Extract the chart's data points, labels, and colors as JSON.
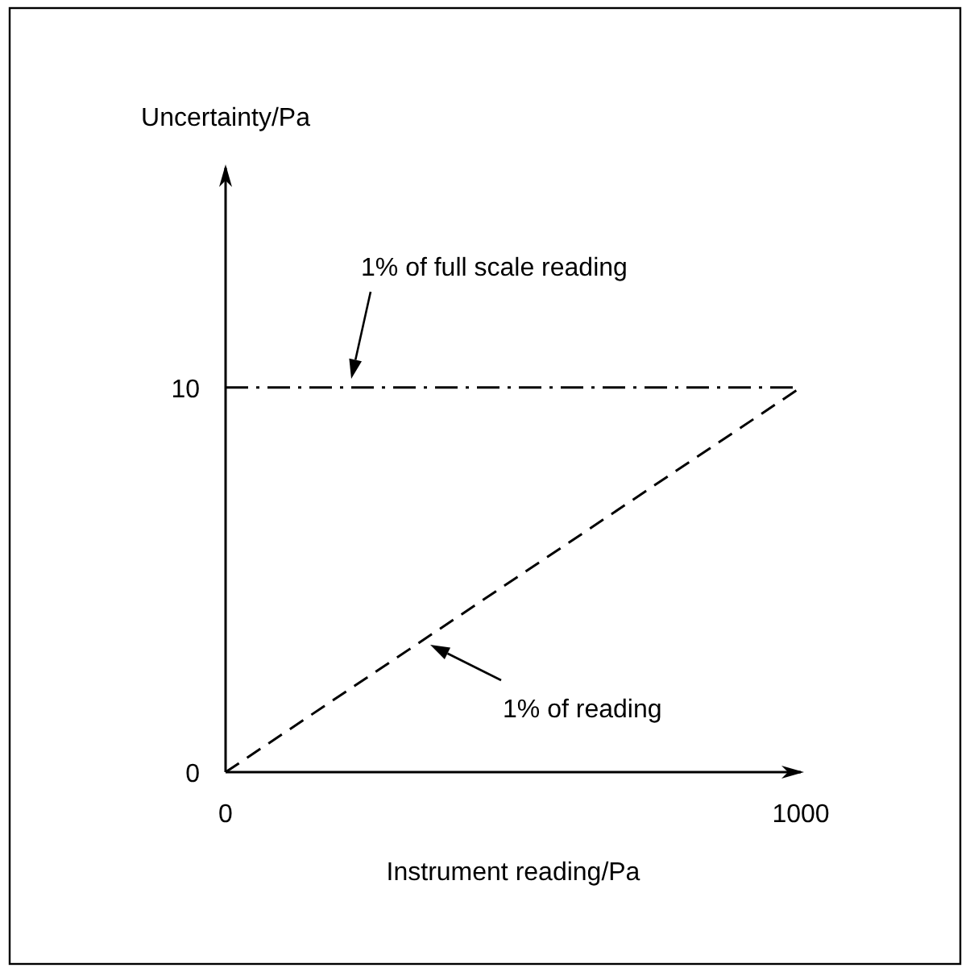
{
  "chart_data": {
    "type": "line",
    "xlabel": "Instrument reading/Pa",
    "ylabel": "Uncertainty/Pa",
    "x": [
      0,
      1000
    ],
    "series": [
      {
        "color": "#000000",
        "values": [
          10,
          10
        ],
        "line_style": "dashdot"
      },
      {
        "color": "#000000",
        "values": [
          0,
          10
        ],
        "line_style": "dashed"
      }
    ],
    "xlim": [
      0,
      1000
    ],
    "ylim": [
      0,
      15.8
    ],
    "xticks": [
      0,
      1000
    ],
    "yticks": [
      0,
      10
    ],
    "grid": false,
    "marker": "none",
    "annotations": [
      "1% of full scale reading",
      "1% of reading"
    ]
  }
}
